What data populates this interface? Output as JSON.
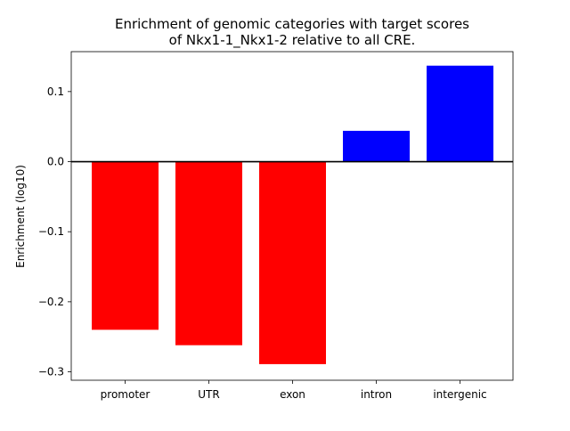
{
  "chart_data": {
    "type": "bar",
    "title_lines": [
      "Enrichment of genomic categories with target scores",
      "of Nkx1-1_Nkx1-2 relative to all CRE."
    ],
    "xlabel": "",
    "ylabel": "Enrichment (log10)",
    "categories": [
      "promoter",
      "UTR",
      "exon",
      "intron",
      "intergenic"
    ],
    "values": [
      -0.24,
      -0.262,
      -0.289,
      0.044,
      0.137
    ],
    "ylim": [
      -0.312,
      0.157
    ],
    "yticks": [
      0.1,
      0.0,
      -0.1,
      -0.2,
      -0.3
    ],
    "ytick_labels": [
      "0.1",
      "0.0",
      "−0.1",
      "−0.2",
      "−0.3"
    ],
    "colors": {
      "negative": "#ff0000",
      "positive": "#0000ff",
      "zero_line": "#000000"
    },
    "grid": false,
    "legend": "none"
  }
}
